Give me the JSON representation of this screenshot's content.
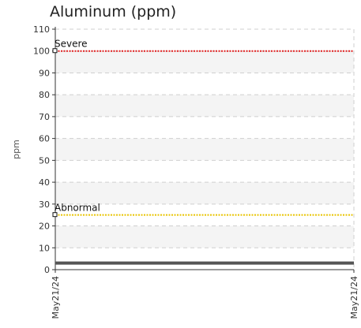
{
  "chart_data": {
    "type": "line",
    "title": "Aluminum (ppm)",
    "ylabel": "ppm",
    "xlabel": "",
    "ylim": [
      0,
      110
    ],
    "y_ticks": [
      0,
      10,
      20,
      30,
      40,
      50,
      60,
      70,
      80,
      90,
      100,
      110
    ],
    "x_ticks": [
      "May21/24",
      "May21/24"
    ],
    "grid": true,
    "series": [
      {
        "values": [
          3,
          3
        ],
        "color": "#555555"
      }
    ],
    "thresholds": [
      {
        "label": "Severe",
        "value": 100,
        "color": "#e02020"
      },
      {
        "label": "Abnormal",
        "value": 25,
        "color": "#e8c400"
      }
    ]
  }
}
